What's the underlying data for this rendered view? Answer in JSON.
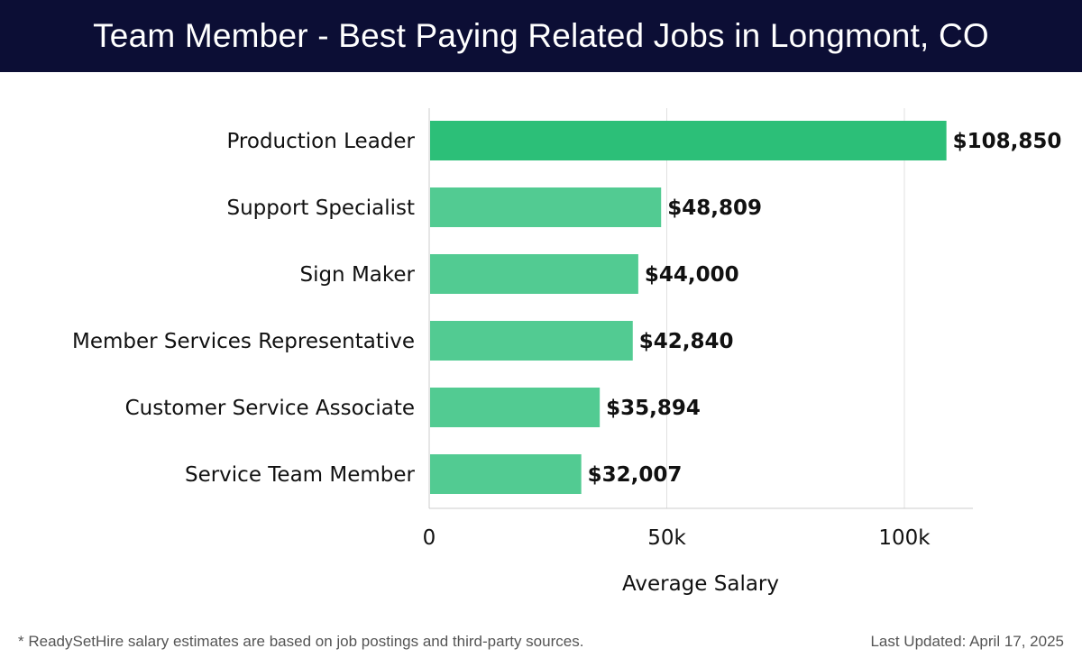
{
  "header": {
    "title": "Team Member - Best Paying Related Jobs in Longmont, CO"
  },
  "footer": {
    "note": "* ReadySetHire salary estimates are based on job postings and third-party sources.",
    "updated": "Last Updated: April 17, 2025"
  },
  "colors": {
    "header_bg": "#0c0e35",
    "bar_top": "#2cbf78",
    "bar": "#52cb92",
    "grid": "#e0e0e0"
  },
  "chart_data": {
    "type": "bar",
    "orientation": "horizontal",
    "categories": [
      "Production Leader",
      "Support Specialist",
      "Sign Maker",
      "Member Services Representative",
      "Customer Service Associate",
      "Service Team Member"
    ],
    "values": [
      108850,
      48809,
      44000,
      42840,
      35894,
      32007
    ],
    "value_labels": [
      "$108,850",
      "$48,809",
      "$44,000",
      "$42,840",
      "$35,894",
      "$32,007"
    ],
    "xlabel": "Average Salary",
    "xlim": [
      0,
      115000
    ],
    "xticks": [
      0,
      50000,
      100000
    ],
    "xtick_labels": [
      "0",
      "50k",
      "100k"
    ],
    "grid": true
  }
}
